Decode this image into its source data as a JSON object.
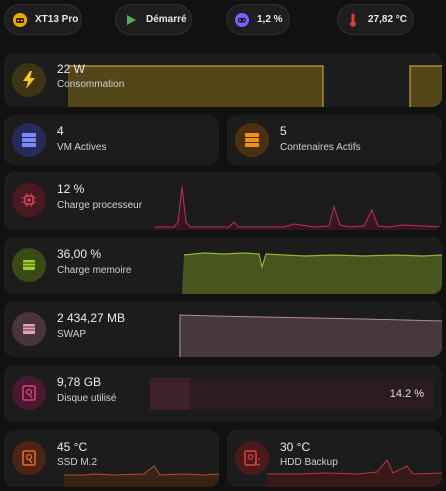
{
  "header": {
    "chips": [
      {
        "icon": "robot-icon",
        "label": "XT13 Pro",
        "color": "#f0a500"
      },
      {
        "icon": "play-icon",
        "label": "Démarré",
        "color": "#4caf50"
      },
      {
        "icon": "gamepad-icon",
        "label": "1,2 %",
        "color": "#7c5cff"
      },
      {
        "icon": "thermometer-icon",
        "label": "27,82 °C",
        "color": "#e53935"
      }
    ]
  },
  "cards": {
    "power": {
      "value": "22 W",
      "label": "Consommation",
      "icon": "lightning-icon",
      "color": "#f5c518"
    },
    "vms": {
      "value": "4",
      "label": "VM Actives",
      "icon": "server-icon",
      "color": "#5b6cf0"
    },
    "containers": {
      "value": "5",
      "label": "Contenaires Actifs",
      "icon": "server-icon",
      "color": "#f0901e"
    },
    "cpu": {
      "value": "12 %",
      "label": "Charge processeur",
      "icon": "cpu-icon",
      "color": "#e0405a"
    },
    "memory": {
      "value": "36,00 %",
      "label": "Charge memoire",
      "icon": "memory-icon",
      "color": "#9bd12c"
    },
    "swap": {
      "value": "2 434,27 MB",
      "label": "SWAP",
      "icon": "memory-icon",
      "color": "#e5a3b7"
    },
    "disk": {
      "value": "9,78 GB",
      "label": "Disque utilisé",
      "icon": "hard-disk-icon",
      "color": "#e0407a",
      "percent": "14.2 %",
      "fill": 0.142
    },
    "ssd": {
      "value": "45 °C",
      "label": "SSD M.2",
      "icon": "hard-disk-icon",
      "color": "#f06a2a"
    },
    "hdd": {
      "value": "30 °C",
      "label": "HDD Backup",
      "icon": "hard-disk-sync-icon",
      "color": "#e04040"
    }
  }
}
